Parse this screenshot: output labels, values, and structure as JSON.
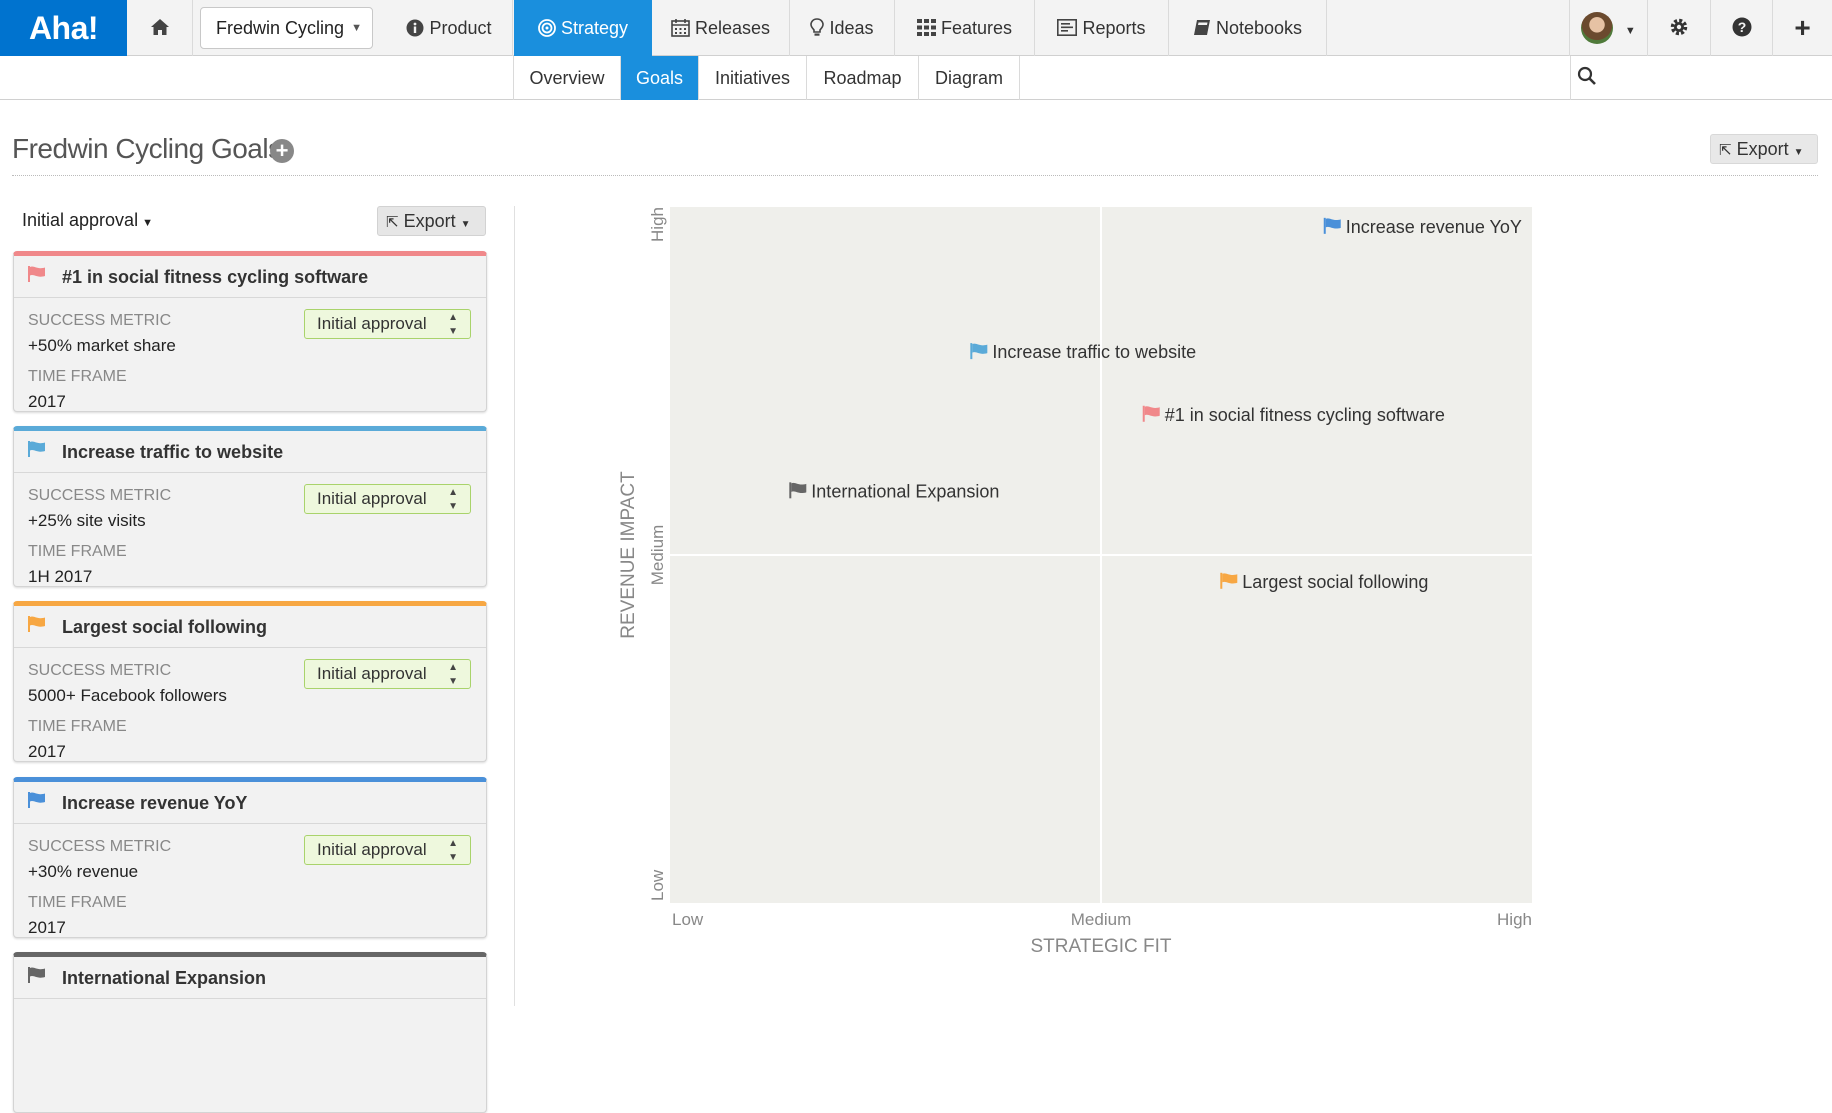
{
  "app": {
    "logo": "Aha!"
  },
  "nav": {
    "product_select": "Fredwin Cycling",
    "items": [
      {
        "label": "Product",
        "icon": "info-icon"
      },
      {
        "label": "Strategy",
        "icon": "target-icon"
      },
      {
        "label": "Releases",
        "icon": "calendar-icon"
      },
      {
        "label": "Ideas",
        "icon": "lightbulb-icon"
      },
      {
        "label": "Features",
        "icon": "grid-icon"
      },
      {
        "label": "Reports",
        "icon": "report-icon"
      },
      {
        "label": "Notebooks",
        "icon": "book-icon"
      }
    ]
  },
  "subnav": {
    "items": [
      "Overview",
      "Goals",
      "Initiatives",
      "Roadmap",
      "Diagram"
    ]
  },
  "page": {
    "title": "Fredwin Cycling Goals",
    "export_label": "Export"
  },
  "list": {
    "filter": "Initial approval",
    "export_label": "Export",
    "metric_label": "SUCCESS METRIC",
    "timeframe_label": "TIME FRAME",
    "goals": [
      {
        "title": "#1 in social fitness cycling software",
        "metric": "+50% market share",
        "timeframe": "2017",
        "status": "Initial approval",
        "color": "#f0888a"
      },
      {
        "title": "Increase traffic to website",
        "metric": "+25% site visits",
        "timeframe": "1H 2017",
        "status": "Initial approval",
        "color": "#5aaad8"
      },
      {
        "title": "Largest social following",
        "metric": "5000+ Facebook followers",
        "timeframe": "2017",
        "status": "Initial approval",
        "color": "#f7a743"
      },
      {
        "title": "Increase revenue YoY",
        "metric": "+30% revenue",
        "timeframe": "2017",
        "status": "Initial approval",
        "color": "#4a90d9"
      },
      {
        "title": "International Expansion",
        "color": "#666666"
      }
    ]
  },
  "chart_data": {
    "type": "scatter",
    "xlabel": "STRATEGIC FIT",
    "ylabel": "REVENUE IMPACT",
    "x_ticks": [
      "Low",
      "Medium",
      "High"
    ],
    "y_ticks": [
      "Low",
      "Medium",
      "High"
    ],
    "xlim": [
      0,
      1
    ],
    "ylim": [
      0,
      1
    ],
    "points": [
      {
        "label": "Increase revenue YoY",
        "x": 0.77,
        "y": 0.96,
        "color": "#4a90d9"
      },
      {
        "label": "Increase traffic to website",
        "x": 0.36,
        "y": 0.78,
        "color": "#5aaad8"
      },
      {
        "label": "#1 in social fitness cycling software",
        "x": 0.56,
        "y": 0.69,
        "color": "#f0888a"
      },
      {
        "label": "International Expansion",
        "x": 0.15,
        "y": 0.58,
        "color": "#666666"
      },
      {
        "label": "Largest social following",
        "x": 0.65,
        "y": 0.45,
        "color": "#f7a743"
      }
    ]
  }
}
